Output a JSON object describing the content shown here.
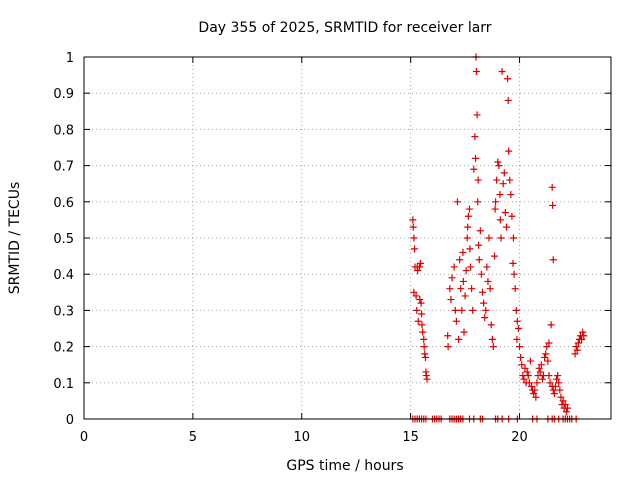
{
  "chart_data": {
    "type": "scatter",
    "title": "Day 355 of 2025, SRMTID for receiver larr",
    "xlabel": "GPS time / hours",
    "ylabel": "SRMTID / TECUs",
    "xlim": [
      0,
      24.2
    ],
    "ylim": [
      0,
      1
    ],
    "xticks": [
      0,
      5,
      10,
      15,
      20
    ],
    "xtick_labels": [
      "0",
      "5",
      "10",
      "15",
      "20"
    ],
    "yticks": [
      0,
      0.1,
      0.2,
      0.3,
      0.4,
      0.5,
      0.6,
      0.7,
      0.8,
      0.9,
      1
    ],
    "ytick_labels": [
      "0",
      "0.1",
      "0.2",
      "0.3",
      "0.4",
      "0.5",
      "0.6",
      "0.7",
      "0.8",
      "0.9",
      "1"
    ],
    "grid": true,
    "marker": "+",
    "color": "#dd0000",
    "series": [
      {
        "name": "SRMTID",
        "points": [
          [
            15.1,
            0
          ],
          [
            15.2,
            0
          ],
          [
            15.3,
            0
          ],
          [
            15.4,
            0
          ],
          [
            15.5,
            0
          ],
          [
            15.6,
            0
          ],
          [
            15.7,
            0
          ],
          [
            16.0,
            0
          ],
          [
            16.1,
            0
          ],
          [
            16.2,
            0
          ],
          [
            16.3,
            0
          ],
          [
            16.4,
            0
          ],
          [
            16.8,
            0
          ],
          [
            16.9,
            0
          ],
          [
            17.0,
            0
          ],
          [
            17.1,
            0
          ],
          [
            17.2,
            0
          ],
          [
            17.3,
            0
          ],
          [
            17.4,
            0
          ],
          [
            17.7,
            0
          ],
          [
            17.9,
            0
          ],
          [
            18.2,
            0
          ],
          [
            18.3,
            0
          ],
          [
            18.9,
            0
          ],
          [
            19.0,
            0
          ],
          [
            19.2,
            0
          ],
          [
            19.5,
            0
          ],
          [
            19.9,
            0
          ],
          [
            20.6,
            0
          ],
          [
            20.8,
            0
          ],
          [
            21.3,
            0
          ],
          [
            21.5,
            0
          ],
          [
            21.6,
            0
          ],
          [
            21.8,
            0
          ],
          [
            22.0,
            0
          ],
          [
            22.1,
            0
          ],
          [
            22.2,
            0
          ],
          [
            22.3,
            0
          ],
          [
            22.4,
            0
          ],
          [
            22.6,
            0
          ],
          [
            15.1,
            0.55
          ],
          [
            15.12,
            0.53
          ],
          [
            15.15,
            0.5
          ],
          [
            15.18,
            0.47
          ],
          [
            15.2,
            0.42
          ],
          [
            15.15,
            0.35
          ],
          [
            15.25,
            0.34
          ],
          [
            15.28,
            0.3
          ],
          [
            15.3,
            0.42
          ],
          [
            15.32,
            0.41
          ],
          [
            15.35,
            0.27
          ],
          [
            15.4,
            0.42
          ],
          [
            15.42,
            0.33
          ],
          [
            15.45,
            0.43
          ],
          [
            15.48,
            0.32
          ],
          [
            15.5,
            0.29
          ],
          [
            15.52,
            0.26
          ],
          [
            15.55,
            0.24
          ],
          [
            15.6,
            0.22
          ],
          [
            15.62,
            0.2
          ],
          [
            15.65,
            0.18
          ],
          [
            15.68,
            0.17
          ],
          [
            15.7,
            0.13
          ],
          [
            15.72,
            0.12
          ],
          [
            15.75,
            0.11
          ],
          [
            16.7,
            0.23
          ],
          [
            16.72,
            0.2
          ],
          [
            16.8,
            0.36
          ],
          [
            16.85,
            0.33
          ],
          [
            16.9,
            0.39
          ],
          [
            17.0,
            0.42
          ],
          [
            17.05,
            0.3
          ],
          [
            17.1,
            0.27
          ],
          [
            17.15,
            0.6
          ],
          [
            17.2,
            0.22
          ],
          [
            17.25,
            0.44
          ],
          [
            17.3,
            0.36
          ],
          [
            17.35,
            0.3
          ],
          [
            17.4,
            0.46
          ],
          [
            17.42,
            0.38
          ],
          [
            17.45,
            0.24
          ],
          [
            17.5,
            0.34
          ],
          [
            17.55,
            0.41
          ],
          [
            17.6,
            0.5
          ],
          [
            17.62,
            0.53
          ],
          [
            17.65,
            0.56
          ],
          [
            17.7,
            0.58
          ],
          [
            17.72,
            0.47
          ],
          [
            17.75,
            0.42
          ],
          [
            17.8,
            0.36
          ],
          [
            17.85,
            0.3
          ],
          [
            17.9,
            0.69
          ],
          [
            17.95,
            0.78
          ],
          [
            17.98,
            0.72
          ],
          [
            18.0,
            1.0
          ],
          [
            18.02,
            0.96
          ],
          [
            18.05,
            0.84
          ],
          [
            18.08,
            0.6
          ],
          [
            18.1,
            0.66
          ],
          [
            18.12,
            0.48
          ],
          [
            18.15,
            0.44
          ],
          [
            18.2,
            0.52
          ],
          [
            18.25,
            0.4
          ],
          [
            18.3,
            0.35
          ],
          [
            18.35,
            0.32
          ],
          [
            18.4,
            0.28
          ],
          [
            18.45,
            0.3
          ],
          [
            18.5,
            0.42
          ],
          [
            18.55,
            0.38
          ],
          [
            18.6,
            0.5
          ],
          [
            18.65,
            0.36
          ],
          [
            18.7,
            0.26
          ],
          [
            18.75,
            0.22
          ],
          [
            18.8,
            0.2
          ],
          [
            18.85,
            0.45
          ],
          [
            18.88,
            0.58
          ],
          [
            18.9,
            0.6
          ],
          [
            18.95,
            0.66
          ],
          [
            19.0,
            0.71
          ],
          [
            19.05,
            0.7
          ],
          [
            19.1,
            0.62
          ],
          [
            19.12,
            0.55
          ],
          [
            19.15,
            0.5
          ],
          [
            19.2,
            0.96
          ],
          [
            19.25,
            0.65
          ],
          [
            19.3,
            0.68
          ],
          [
            19.35,
            0.57
          ],
          [
            19.4,
            0.53
          ],
          [
            19.45,
            0.94
          ],
          [
            19.48,
            0.88
          ],
          [
            19.5,
            0.74
          ],
          [
            19.55,
            0.66
          ],
          [
            19.6,
            0.62
          ],
          [
            19.65,
            0.56
          ],
          [
            19.7,
            0.43
          ],
          [
            19.72,
            0.5
          ],
          [
            19.75,
            0.4
          ],
          [
            19.8,
            0.36
          ],
          [
            19.85,
            0.3
          ],
          [
            19.88,
            0.22
          ],
          [
            19.9,
            0.27
          ],
          [
            19.95,
            0.25
          ],
          [
            20.0,
            0.2
          ],
          [
            20.05,
            0.17
          ],
          [
            20.1,
            0.15
          ],
          [
            20.15,
            0.12
          ],
          [
            20.2,
            0.11
          ],
          [
            20.25,
            0.14
          ],
          [
            20.3,
            0.1
          ],
          [
            20.35,
            0.13
          ],
          [
            20.4,
            0.12
          ],
          [
            20.45,
            0.1
          ],
          [
            20.5,
            0.16
          ],
          [
            20.55,
            0.09
          ],
          [
            20.6,
            0.08
          ],
          [
            20.65,
            0.07
          ],
          [
            20.7,
            0.08
          ],
          [
            20.75,
            0.06
          ],
          [
            20.8,
            0.1
          ],
          [
            20.85,
            0.12
          ],
          [
            20.9,
            0.14
          ],
          [
            20.95,
            0.13
          ],
          [
            21.0,
            0.15
          ],
          [
            21.05,
            0.11
          ],
          [
            21.1,
            0.12
          ],
          [
            21.15,
            0.17
          ],
          [
            21.2,
            0.18
          ],
          [
            21.25,
            0.2
          ],
          [
            21.3,
            0.16
          ],
          [
            21.35,
            0.12
          ],
          [
            21.4,
            0.1
          ],
          [
            21.45,
            0.26
          ],
          [
            21.5,
            0.09
          ],
          [
            21.55,
            0.08
          ],
          [
            21.6,
            0.07
          ],
          [
            21.65,
            0.09
          ],
          [
            21.7,
            0.11
          ],
          [
            21.75,
            0.12
          ],
          [
            21.8,
            0.1
          ],
          [
            21.85,
            0.08
          ],
          [
            21.9,
            0.06
          ],
          [
            21.95,
            0.04
          ],
          [
            22.0,
            0.05
          ],
          [
            22.05,
            0.03
          ],
          [
            22.1,
            0.04
          ],
          [
            22.15,
            0.02
          ],
          [
            22.2,
            0.03
          ],
          [
            21.35,
            0.21
          ],
          [
            21.5,
            0.64
          ],
          [
            21.52,
            0.59
          ],
          [
            21.55,
            0.44
          ],
          [
            22.55,
            0.18
          ],
          [
            22.6,
            0.2
          ],
          [
            22.65,
            0.19
          ],
          [
            22.7,
            0.21
          ],
          [
            22.75,
            0.22
          ],
          [
            22.8,
            0.23
          ],
          [
            22.85,
            0.22
          ],
          [
            22.9,
            0.24
          ],
          [
            22.95,
            0.23
          ]
        ]
      }
    ]
  }
}
